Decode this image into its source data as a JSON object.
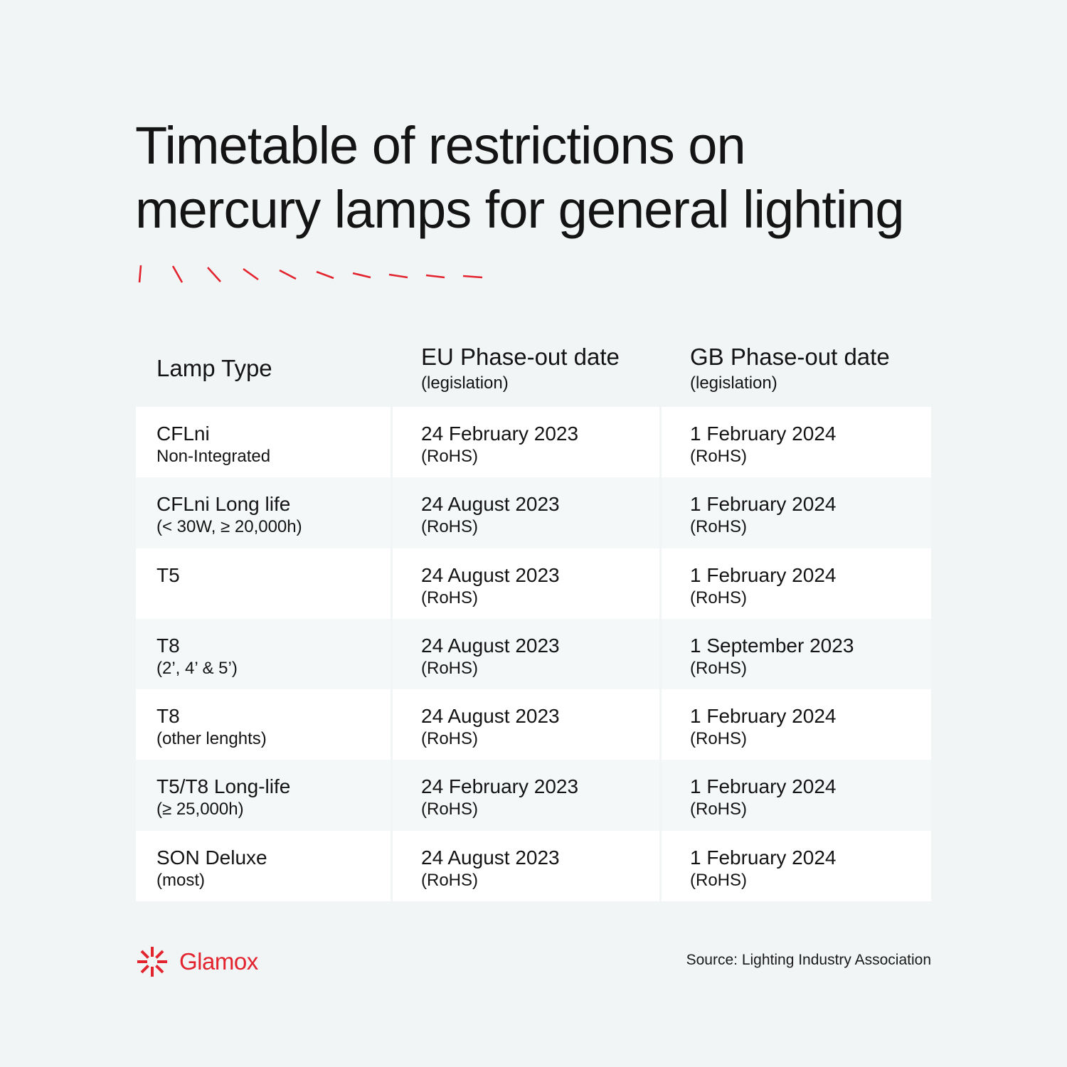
{
  "title": {
    "line1": "Timetable of restrictions on",
    "line2": "mercury lamps for general lighting"
  },
  "colors": {
    "accent": "#e3232e",
    "background": "#f1f5f5",
    "row_light": "#ffffff",
    "row_alt": "#f5f8f8"
  },
  "table": {
    "headers": {
      "lamp": "Lamp Type",
      "eu": "EU Phase-out date",
      "eu_sub": "(legislation)",
      "gb": "GB Phase-out date",
      "gb_sub": "(legislation)"
    },
    "rows": [
      {
        "lamp": "CFLni",
        "lamp_sub": "Non-Integrated",
        "eu": "24 February 2023",
        "eu_sub": "(RoHS)",
        "gb": "1 February 2024",
        "gb_sub": "(RoHS)"
      },
      {
        "lamp": "CFLni Long life",
        "lamp_sub": "(< 30W, ≥ 20,000h)",
        "eu": "24 August 2023",
        "eu_sub": "(RoHS)",
        "gb": "1 February 2024",
        "gb_sub": "(RoHS)"
      },
      {
        "lamp": "T5",
        "lamp_sub": "",
        "eu": "24 August 2023",
        "eu_sub": "(RoHS)",
        "gb": "1 February 2024",
        "gb_sub": "(RoHS)"
      },
      {
        "lamp": "T8",
        "lamp_sub": "(2’, 4’ & 5’)",
        "eu": "24 August 2023",
        "eu_sub": "(RoHS)",
        "gb": "1 September 2023",
        "gb_sub": "(RoHS)"
      },
      {
        "lamp": "T8",
        "lamp_sub": "(other lenghts)",
        "eu": "24 August 2023",
        "eu_sub": "(RoHS)",
        "gb": "1 February 2024",
        "gb_sub": "(RoHS)"
      },
      {
        "lamp": "T5/T8 Long-life",
        "lamp_sub": "(≥ 25,000h)",
        "eu": "24 February 2023",
        "eu_sub": "(RoHS)",
        "gb": "1 February 2024",
        "gb_sub": "(RoHS)"
      },
      {
        "lamp": "SON Deluxe",
        "lamp_sub": "(most)",
        "eu": "24 August 2023",
        "eu_sub": "(RoHS)",
        "gb": "1 February 2024",
        "gb_sub": "(RoHS)"
      }
    ]
  },
  "footer": {
    "brand": "Glamox",
    "logo_icon": "glamox-starburst-icon",
    "source": "Source: Lighting Industry Association"
  }
}
